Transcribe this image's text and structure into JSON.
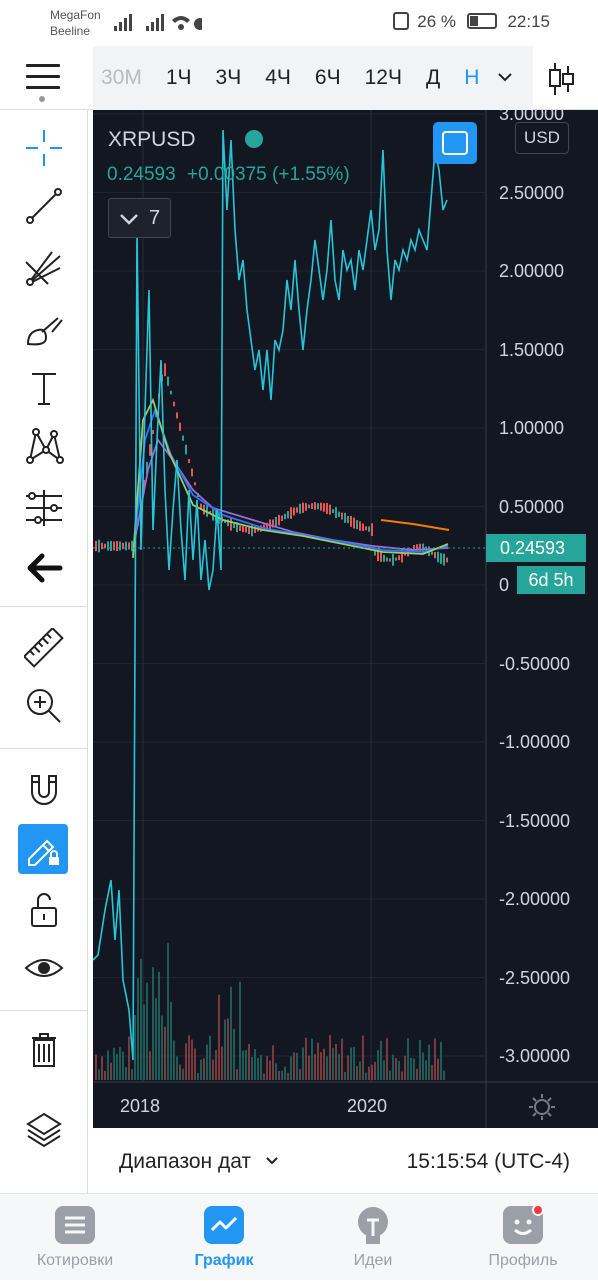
{
  "status_bar": {
    "carrier_1": "MegaFon",
    "carrier_2": "Beeline",
    "battery": "26 %",
    "time": "22:15"
  },
  "toolbar": {
    "timeframes": [
      "30М",
      "1Ч",
      "3Ч",
      "4Ч",
      "6Ч",
      "12Ч",
      "Д",
      "Н"
    ],
    "active_timeframe": "Н"
  },
  "symbol": {
    "name": "XRPUSD",
    "price": "0.24593",
    "change": "+0.00375 (+1.55%)",
    "indicators_count": "7",
    "currency": "USD"
  },
  "price_axis": {
    "labels": [
      "3.00000",
      "2.50000",
      "2.00000",
      "1.50000",
      "1.00000",
      "0.50000",
      "0",
      "-0.50000",
      "-1.00000",
      "-1.50000",
      "-2.00000",
      "-2.50000",
      "-3.00000"
    ],
    "current_price_label": "0.24593",
    "countdown_label": "6d 5h"
  },
  "time_axis": {
    "labels": [
      "2018",
      "2020"
    ]
  },
  "date_bar": {
    "range_label": "Диапазон дат",
    "time": "15:15:54 (UTC-4)"
  },
  "bottom_nav": [
    {
      "label": "Котировки",
      "active": false
    },
    {
      "label": "График",
      "active": true
    },
    {
      "label": "Идеи",
      "active": false
    },
    {
      "label": "Профиль",
      "active": false
    }
  ],
  "colors": {
    "accent": "#2196f3",
    "chart_bg": "#131722",
    "price_green": "#26a69a",
    "oscillator": "#26c6da",
    "ma_orange": "#f57c00",
    "ma_purple": "#9c6ad6"
  }
}
